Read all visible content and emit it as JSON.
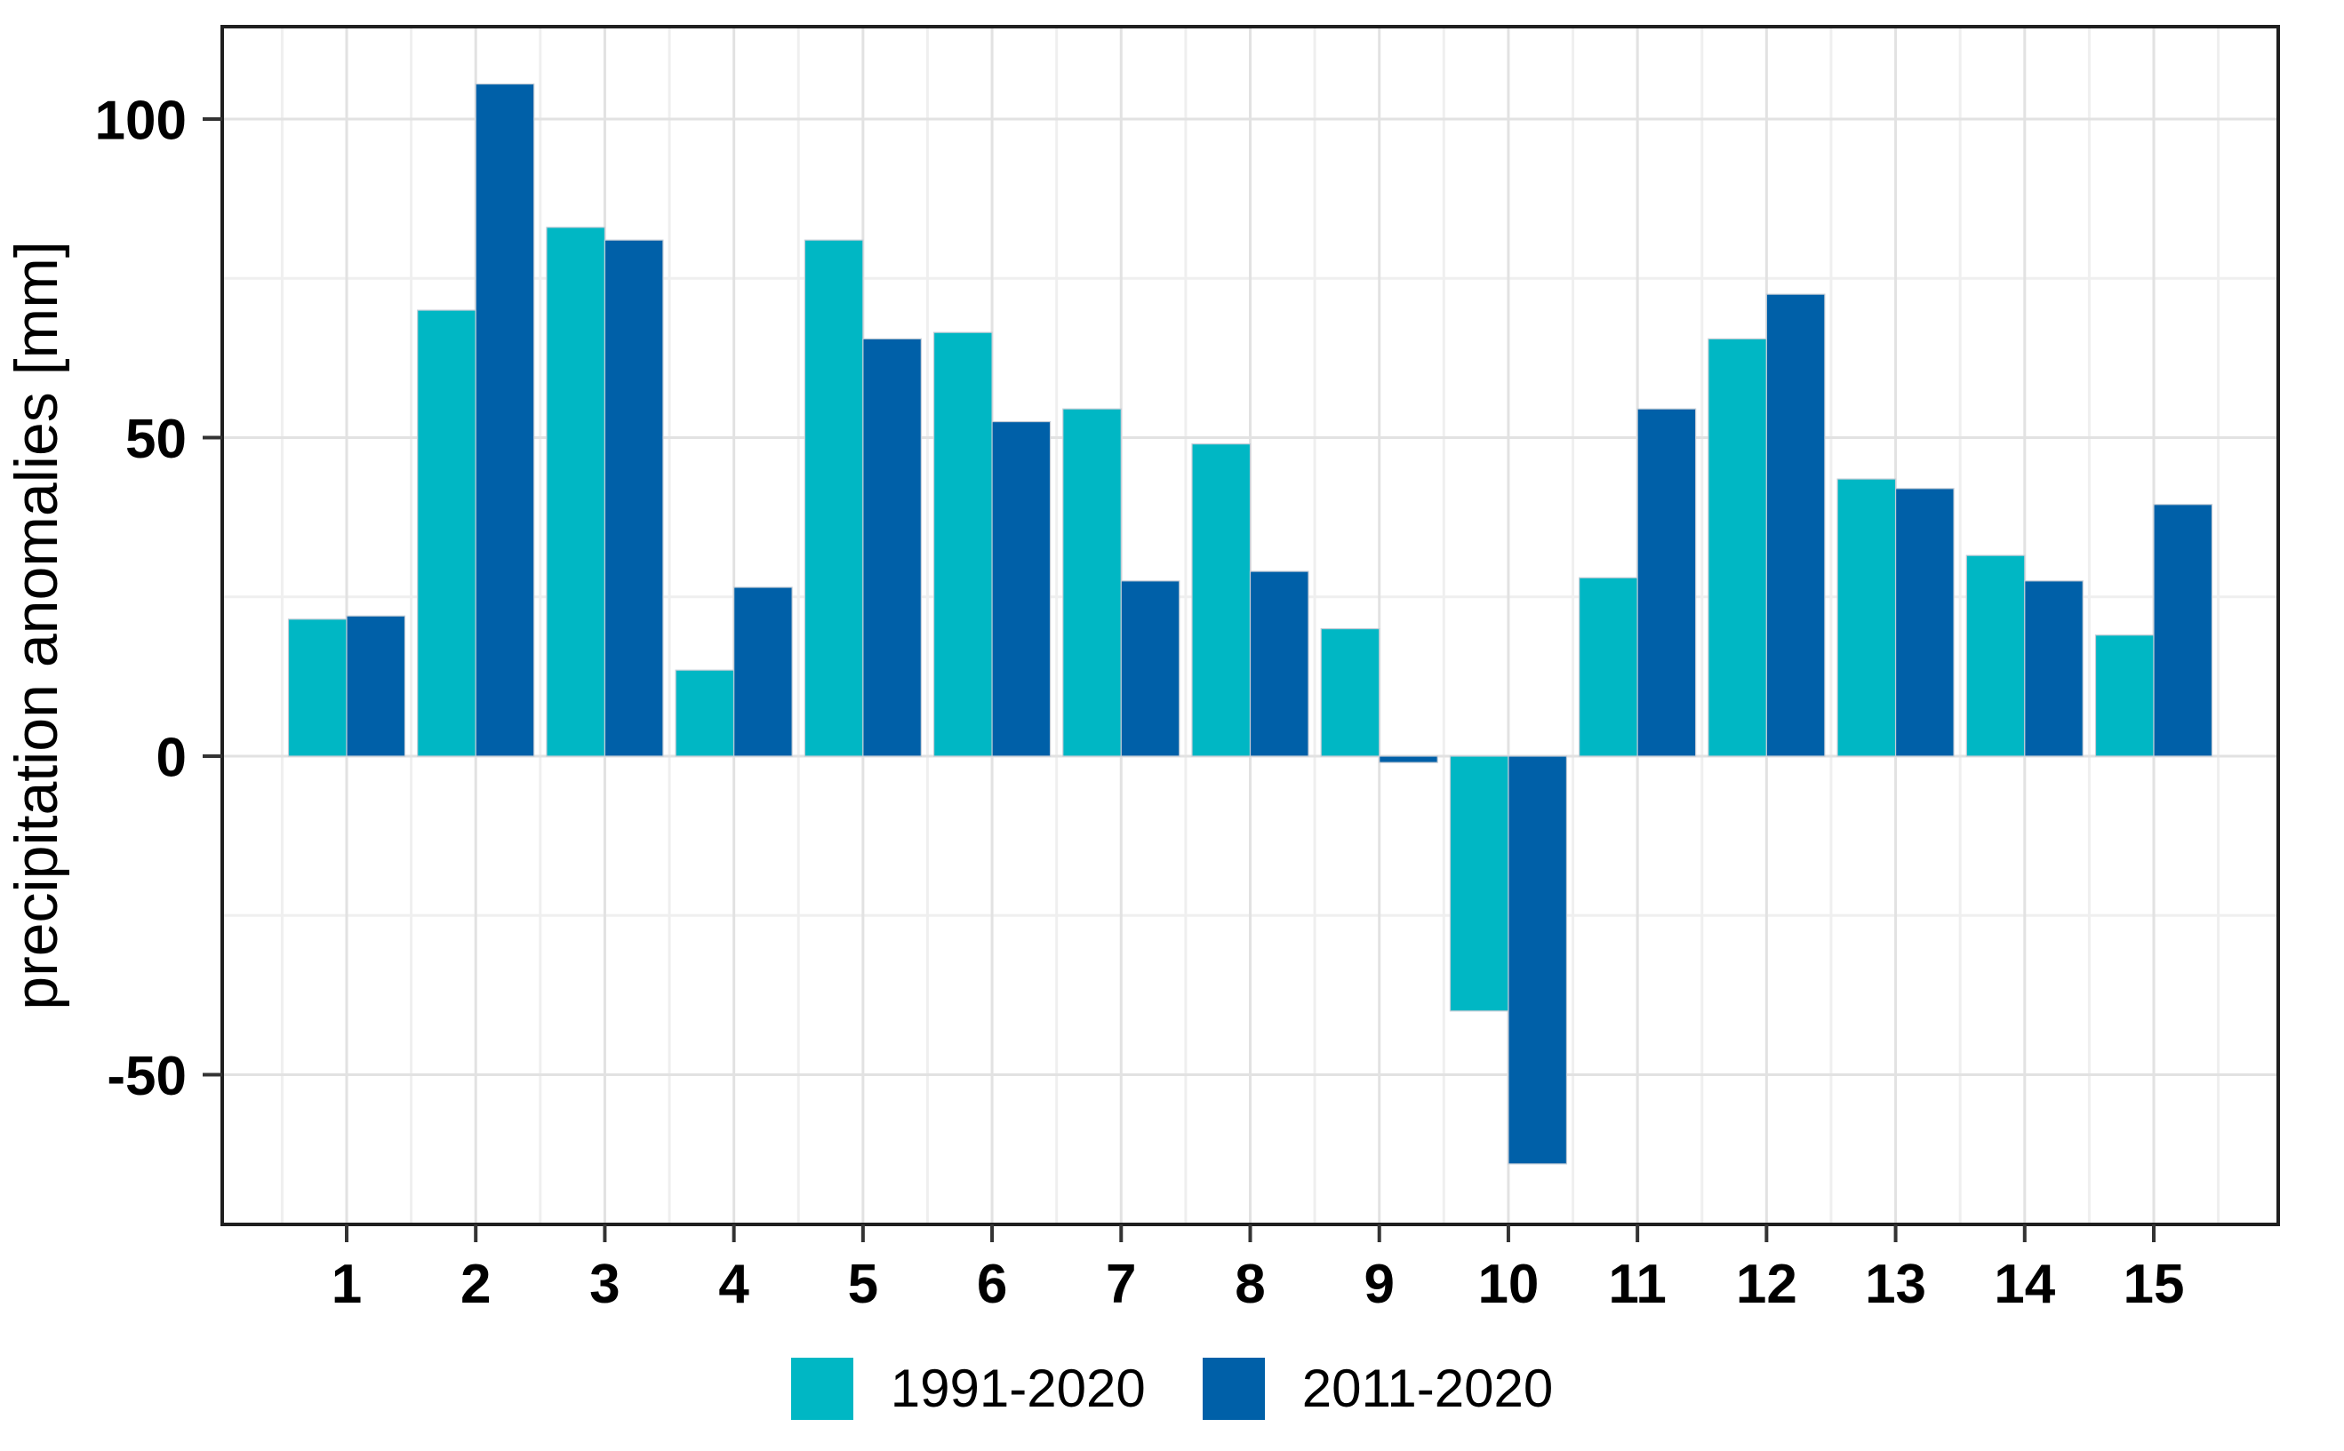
{
  "chart_data": {
    "type": "bar",
    "title": "",
    "xlabel": "",
    "ylabel": "precipitation anomalies [mm]",
    "categories": [
      "1",
      "2",
      "3",
      "4",
      "5",
      "6",
      "7",
      "8",
      "9",
      "10",
      "11",
      "12",
      "13",
      "14",
      "15"
    ],
    "series": [
      {
        "name": "1991-2020",
        "color": "#00b7c4",
        "values": [
          21.5,
          70,
          83,
          13.5,
          81,
          66.5,
          54.5,
          49,
          20,
          -40,
          28,
          65.5,
          43.5,
          31.5,
          19
        ]
      },
      {
        "name": "2011-2020",
        "color": "#0060a8",
        "values": [
          22,
          105.5,
          81,
          26.5,
          65.5,
          52.5,
          27.5,
          29,
          -1,
          -64,
          54.5,
          72.5,
          42,
          27.5,
          39.5
        ]
      }
    ],
    "y_ticks": [
      -50,
      0,
      50,
      100
    ],
    "ylim": [
      -73.5,
      114.5
    ],
    "grid": true,
    "legend_position": "bottom"
  },
  "colors": {
    "series1": "#00b7c4",
    "series2": "#0060a8",
    "grid_major": "#e2e2e2",
    "grid_minor": "#efefef",
    "panel_border": "#1f1f1f",
    "tick": "#333333",
    "text": "#000000",
    "background": "#ffffff"
  }
}
